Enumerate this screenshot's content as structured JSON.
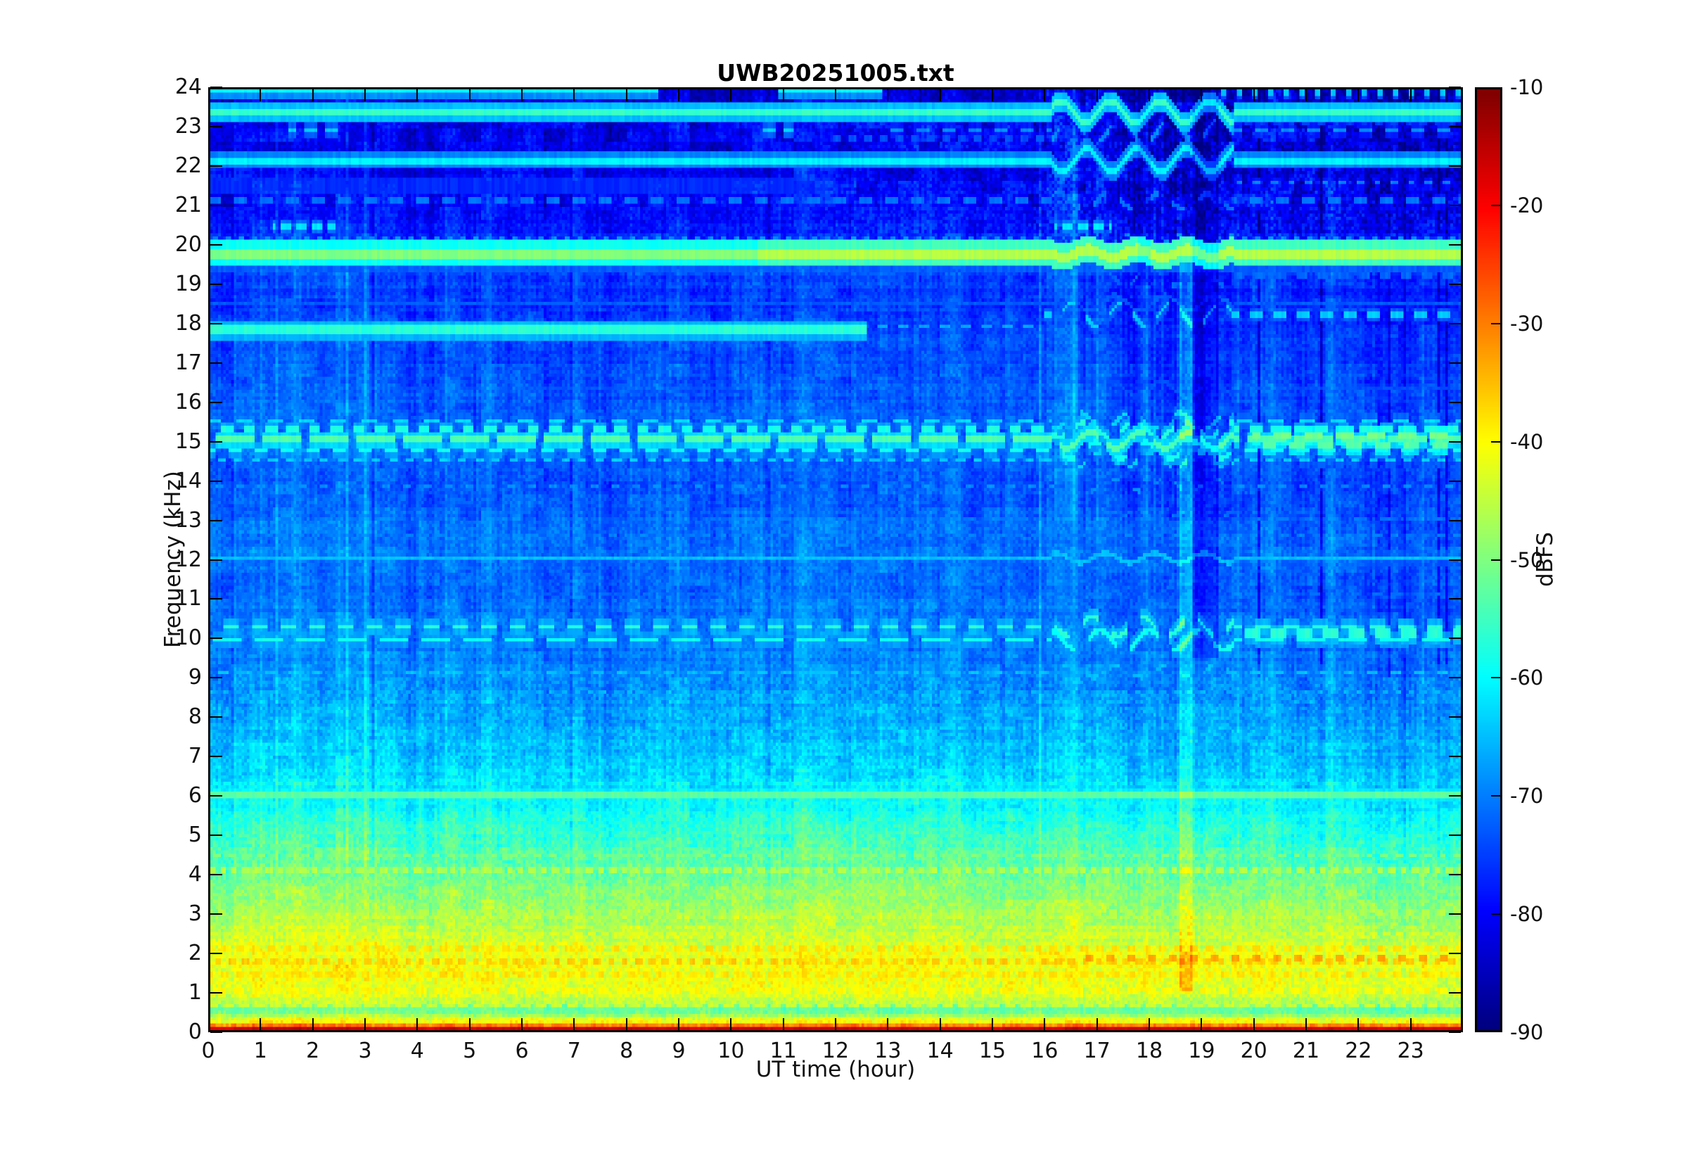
{
  "chart_data": {
    "type": "heatmap",
    "subtype": "spectrogram",
    "title": "UWB20251005.txt",
    "xlabel": "UT time (hour)",
    "ylabel": "Frequency (kHz)",
    "x_range": [
      0,
      24
    ],
    "y_range": [
      0,
      24
    ],
    "x_ticks": [
      0,
      1,
      2,
      3,
      4,
      5,
      6,
      7,
      8,
      9,
      10,
      11,
      12,
      13,
      14,
      15,
      16,
      17,
      18,
      19,
      20,
      21,
      22,
      23
    ],
    "x_tick_marks": [
      1,
      2,
      3,
      4,
      5,
      6,
      7,
      8,
      9,
      10,
      11,
      12,
      13,
      14,
      15,
      16,
      17,
      18,
      19,
      20,
      21,
      22,
      23
    ],
    "y_ticks": [
      0,
      1,
      2,
      3,
      4,
      5,
      6,
      7,
      8,
      9,
      10,
      11,
      12,
      13,
      14,
      15,
      16,
      17,
      18,
      19,
      20,
      21,
      22,
      23,
      24
    ],
    "grid": false,
    "legend": null,
    "colorbar": {
      "label": "dBFS",
      "min": -90,
      "max": -10,
      "tick_labels": [
        -10,
        -20,
        -30,
        -40,
        -50,
        -60,
        -70,
        -80,
        -90
      ],
      "tick_marks": [
        -20,
        -30,
        -40,
        -50,
        -60,
        -70,
        -80
      ],
      "colormap": "jet"
    },
    "background_profile_khz_dbfs": [
      [
        0.05,
        -16
      ],
      [
        0.12,
        -30
      ],
      [
        0.2,
        -40
      ],
      [
        0.3,
        -42
      ],
      [
        0.42,
        -52
      ],
      [
        0.55,
        -53
      ],
      [
        0.7,
        -46
      ],
      [
        0.9,
        -43
      ],
      [
        1.3,
        -41
      ],
      [
        1.8,
        -41
      ],
      [
        2.3,
        -44
      ],
      [
        3.0,
        -47
      ],
      [
        3.6,
        -50
      ],
      [
        4.3,
        -53
      ],
      [
        5.0,
        -56
      ],
      [
        5.8,
        -60
      ],
      [
        6.5,
        -63
      ],
      [
        7.5,
        -66
      ],
      [
        8.5,
        -68
      ],
      [
        9.5,
        -70
      ],
      [
        10.5,
        -71
      ],
      [
        11.5,
        -72
      ],
      [
        12.3,
        -71
      ],
      [
        13.0,
        -72
      ],
      [
        14.0,
        -74
      ],
      [
        15.0,
        -72
      ],
      [
        15.8,
        -73
      ],
      [
        16.5,
        -74
      ],
      [
        17.5,
        -74
      ],
      [
        18.5,
        -76
      ],
      [
        19.5,
        -75
      ],
      [
        20.3,
        -78
      ],
      [
        21.0,
        -80
      ],
      [
        22.0,
        -81
      ],
      [
        23.0,
        -82
      ],
      [
        24.0,
        -83
      ]
    ],
    "transmitter_lines": [
      {
        "f": 23.95,
        "w": 0.07,
        "level": -60,
        "seg": [
          [
            0,
            8.6
          ],
          [
            10.9,
            12.9
          ]
        ],
        "dash": null,
        "wob": 0
      },
      {
        "f": 23.9,
        "w": 0.06,
        "level": -65,
        "seg": [
          [
            19.2,
            24
          ]
        ],
        "dash": [
          0.3,
          0.45
        ],
        "wob": 0
      },
      {
        "f": 23.42,
        "w": 0.09,
        "level": -56,
        "seg": [
          [
            0,
            24
          ]
        ],
        "dash": null,
        "wob": 0.28
      },
      {
        "f": 23.3,
        "w": 0.06,
        "level": -67,
        "seg": [
          [
            19.6,
            24
          ]
        ],
        "dash": [
          0.28,
          0.45
        ],
        "wob": 0
      },
      {
        "f": 22.95,
        "w": 0.06,
        "level": -64,
        "seg": [
          [
            1.5,
            2.6
          ],
          [
            10.5,
            11.2
          ]
        ],
        "dash": [
          0.4,
          0.6
        ],
        "wob": 0
      },
      {
        "f": 22.95,
        "w": 0.06,
        "level": -69,
        "seg": [
          [
            13,
            24
          ]
        ],
        "dash": [
          0.5,
          0.5
        ],
        "wob": 0.3
      },
      {
        "f": 22.75,
        "w": 0.05,
        "level": -74,
        "seg": [
          [
            11.8,
            16.2
          ]
        ],
        "dash": [
          0.3,
          0.5
        ],
        "wob": 0
      },
      {
        "f": 22.4,
        "w": 0.05,
        "level": -75,
        "seg": [
          [
            11.8,
            16.2
          ]
        ],
        "dash": [
          0.3,
          0.5
        ],
        "wob": 0
      },
      {
        "f": 22.2,
        "w": 0.08,
        "level": -61,
        "seg": [
          [
            0,
            24
          ]
        ],
        "dash": null,
        "wob": 0.3
      },
      {
        "f": 21.6,
        "w": 0.05,
        "level": -70,
        "seg": [
          [
            19.5,
            24
          ]
        ],
        "dash": [
          0.33,
          0.4
        ],
        "wob": 0
      },
      {
        "f": 21.55,
        "w": 0.18,
        "level": -77,
        "seg": [
          [
            0,
            12
          ]
        ],
        "dash": null,
        "wob": 0
      },
      {
        "f": 21.15,
        "w": 0.07,
        "level": -71,
        "seg": [
          [
            0,
            24
          ]
        ],
        "dash": [
          0.5,
          0.45
        ],
        "wob": 0.2
      },
      {
        "f": 20.5,
        "w": 0.06,
        "level": -62,
        "seg": [
          [
            1.2,
            2.4
          ],
          [
            16.2,
            17.3
          ]
        ],
        "dash": [
          0.3,
          0.6
        ],
        "wob": 0
      },
      {
        "f": 20.15,
        "w": 0.06,
        "level": -69,
        "seg": [
          [
            0,
            24
          ]
        ],
        "dash": [
          0.25,
          0.4
        ],
        "wob": 0.15
      },
      {
        "f": 19.82,
        "w": 0.13,
        "level": -50,
        "seg": [
          [
            0,
            24
          ]
        ],
        "dash": null,
        "wob": 0.1,
        "boost": [
          10.5,
          24,
          4
        ]
      },
      {
        "f": 19.55,
        "w": 0.25,
        "level": -73,
        "seg": [
          [
            0,
            24
          ]
        ],
        "dash": null,
        "wob": 0
      },
      {
        "f": 19.25,
        "w": 0.05,
        "level": -72,
        "seg": [
          [
            16,
            24
          ]
        ],
        "dash": [
          0.4,
          0.5
        ],
        "wob": 0.25
      },
      {
        "f": 18.55,
        "w": 0.05,
        "level": -73,
        "seg": [
          [
            0,
            24
          ]
        ],
        "dash": null,
        "wob": 0.2
      },
      {
        "f": 18.25,
        "w": 0.06,
        "level": -64,
        "seg": [
          [
            16,
            24
          ]
        ],
        "dash": [
          0.45,
          0.5
        ],
        "wob": 0.3
      },
      {
        "f": 17.95,
        "w": 0.06,
        "level": -67,
        "seg": [
          [
            12.6,
            16
          ]
        ],
        "dash": [
          0.4,
          0.5
        ],
        "wob": 0
      },
      {
        "f": 17.87,
        "w": 0.09,
        "level": -57,
        "seg": [
          [
            0,
            12.6
          ]
        ],
        "dash": null,
        "wob": 0
      },
      {
        "f": 16.35,
        "w": 0.05,
        "level": -74,
        "seg": [
          [
            0,
            24
          ]
        ],
        "dash": null,
        "wob": 0.2
      },
      {
        "f": 15.55,
        "w": 0.06,
        "level": -63,
        "seg": [
          [
            0,
            24
          ]
        ],
        "dash": [
          0.6,
          0.45
        ],
        "wob": 0.2
      },
      {
        "f": 15.32,
        "w": 0.07,
        "level": -58,
        "seg": [
          [
            0,
            24
          ]
        ],
        "dash": [
          0.42,
          0.55
        ],
        "wob": 0.2
      },
      {
        "f": 15.05,
        "w": 0.08,
        "level": -54,
        "seg": [
          [
            0,
            24
          ]
        ],
        "dash": [
          0.9,
          0.8
        ],
        "wob": 0.2
      },
      {
        "f": 14.78,
        "w": 0.07,
        "level": -59,
        "seg": [
          [
            0,
            24
          ]
        ],
        "dash": [
          0.5,
          0.5
        ],
        "wob": 0.2
      },
      {
        "f": 14.55,
        "w": 0.06,
        "level": -64,
        "seg": [
          [
            0,
            24
          ]
        ],
        "dash": [
          0.33,
          0.5
        ],
        "wob": 0.2
      },
      {
        "f": 15.18,
        "w": 0.1,
        "level": -51,
        "seg": [
          [
            20,
            24
          ]
        ],
        "dash": [
          0.6,
          0.55
        ],
        "wob": 0
      },
      {
        "f": 14.92,
        "w": 0.1,
        "level": -53,
        "seg": [
          [
            20.2,
            24
          ]
        ],
        "dash": [
          0.55,
          0.5
        ],
        "wob": 0
      },
      {
        "f": 13.9,
        "w": 0.05,
        "level": -69,
        "seg": [
          [
            0,
            24
          ]
        ],
        "dash": [
          0.4,
          0.4
        ],
        "wob": 0.15
      },
      {
        "f": 13.05,
        "w": 0.05,
        "level": -71,
        "seg": [
          [
            8,
            24
          ]
        ],
        "dash": [
          0.5,
          0.5
        ],
        "wob": 0.15
      },
      {
        "f": 12.65,
        "w": 0.05,
        "level": -70,
        "seg": [
          [
            0,
            24
          ]
        ],
        "dash": [
          0.3,
          0.4
        ],
        "wob": 0
      },
      {
        "f": 12.05,
        "w": 0.06,
        "level": -65,
        "seg": [
          [
            0,
            24
          ]
        ],
        "dash": null,
        "wob": 0.12
      },
      {
        "f": 11.15,
        "w": 0.05,
        "level": -72,
        "seg": [
          [
            0,
            24
          ]
        ],
        "dash": [
          0.4,
          0.5
        ],
        "wob": 0.15
      },
      {
        "f": 10.3,
        "w": 0.07,
        "level": -57,
        "seg": [
          [
            0,
            24
          ]
        ],
        "dash": [
          0.55,
          0.6
        ],
        "wob": 0.25
      },
      {
        "f": 9.95,
        "w": 0.07,
        "level": -59,
        "seg": [
          [
            0,
            24
          ]
        ],
        "dash": [
          0.8,
          0.7
        ],
        "wob": 0.25
      },
      {
        "f": 10.12,
        "w": 0.09,
        "level": -57,
        "seg": [
          [
            19.8,
            24
          ]
        ],
        "dash": [
          0.5,
          0.6
        ],
        "wob": 0
      },
      {
        "f": 9.15,
        "w": 0.05,
        "level": -65,
        "seg": [
          [
            0,
            24
          ]
        ],
        "dash": [
          0.45,
          0.5
        ],
        "wob": 0.15
      },
      {
        "f": 8.65,
        "w": 0.05,
        "level": -66,
        "seg": [
          [
            0,
            24
          ]
        ],
        "dash": [
          0.25,
          0.4
        ],
        "wob": 0
      },
      {
        "f": 6.0,
        "w": 0.05,
        "level": -53,
        "seg": [
          [
            0,
            24
          ]
        ],
        "dash": null,
        "wob": 0
      },
      {
        "f": 4.45,
        "w": 0.07,
        "level": -50,
        "seg": [
          [
            0,
            24
          ]
        ],
        "dash": [
          0.28,
          0.5
        ],
        "wob": 0
      },
      {
        "f": 4.05,
        "w": 0.08,
        "level": -46,
        "seg": [
          [
            0,
            24
          ]
        ],
        "dash": [
          0.22,
          0.55
        ],
        "wob": 0
      },
      {
        "f": 3.0,
        "w": 0.07,
        "level": -46,
        "seg": [
          [
            0,
            24
          ]
        ],
        "dash": [
          0.3,
          0.5
        ],
        "wob": 0
      },
      {
        "f": 2.45,
        "w": 0.07,
        "level": -43,
        "seg": [
          [
            0,
            24
          ]
        ],
        "dash": [
          0.25,
          0.5
        ],
        "wob": 0
      },
      {
        "f": 2.05,
        "w": 0.08,
        "level": -38,
        "seg": [
          [
            0,
            24
          ]
        ],
        "dash": [
          0.3,
          0.5
        ],
        "wob": 0
      },
      {
        "f": 1.75,
        "w": 0.08,
        "level": -36,
        "seg": [
          [
            0,
            24
          ]
        ],
        "dash": [
          0.26,
          0.5
        ],
        "wob": 0
      },
      {
        "f": 1.85,
        "w": 0.1,
        "level": -33,
        "seg": [
          [
            16.8,
            23.8
          ]
        ],
        "dash": [
          0.4,
          0.45
        ],
        "wob": 0
      },
      {
        "f": 1.4,
        "w": 0.06,
        "level": -38,
        "seg": [
          [
            0,
            24
          ]
        ],
        "dash": [
          0.3,
          0.55
        ],
        "wob": 0
      },
      {
        "f": 1.0,
        "w": 0.06,
        "level": -40,
        "seg": [
          [
            0,
            24
          ]
        ],
        "dash": [
          0.35,
          0.6
        ],
        "wob": 0
      },
      {
        "f": 0.6,
        "w": 0.05,
        "level": -44,
        "seg": [
          [
            0,
            24
          ]
        ],
        "dash": [
          0.3,
          0.6
        ],
        "wob": 0
      }
    ],
    "events": {
      "disturbance_window_ut": [
        16.15,
        19.65
      ],
      "night_window_ut": [
        19.5,
        24
      ],
      "bright_streaks": [
        {
          "t": [
            18.6,
            18.78
          ],
          "f": [
            1,
            19.5
          ],
          "db": 6.5
        }
      ],
      "dark_bands": [
        {
          "t": [
            18.85,
            19.3
          ],
          "f": [
            9.5,
            24
          ],
          "db": -5.5
        },
        {
          "t": [
            17.82,
            17.98
          ],
          "f": [
            19,
            24
          ],
          "db": -4
        }
      ]
    },
    "render": {
      "time_bins": 480,
      "freq_bins": 288,
      "seed": 20251005
    }
  }
}
